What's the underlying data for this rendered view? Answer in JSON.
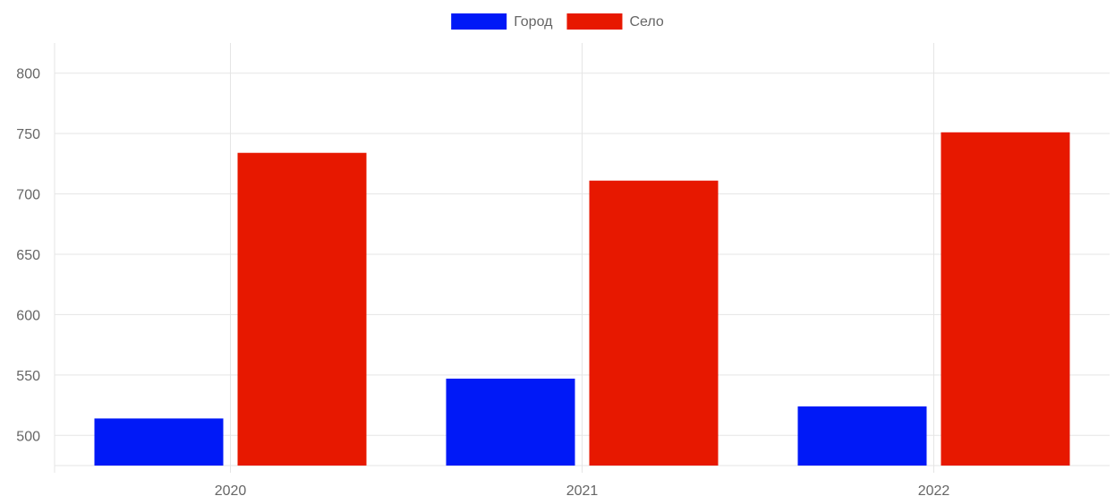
{
  "chart_data": {
    "type": "bar",
    "categories": [
      "2020",
      "2021",
      "2022"
    ],
    "series": [
      {
        "name": "Город",
        "color": "#0019f7",
        "values": [
          514,
          547,
          524
        ]
      },
      {
        "name": "Село",
        "color": "#e71800",
        "values": [
          734,
          711,
          751
        ]
      }
    ],
    "y_ticks": [
      500,
      550,
      600,
      650,
      700,
      750,
      800
    ],
    "ylim": [
      475,
      825
    ],
    "legend_position": "top-center",
    "grid": true,
    "title": "",
    "xlabel": "",
    "ylabel": ""
  }
}
